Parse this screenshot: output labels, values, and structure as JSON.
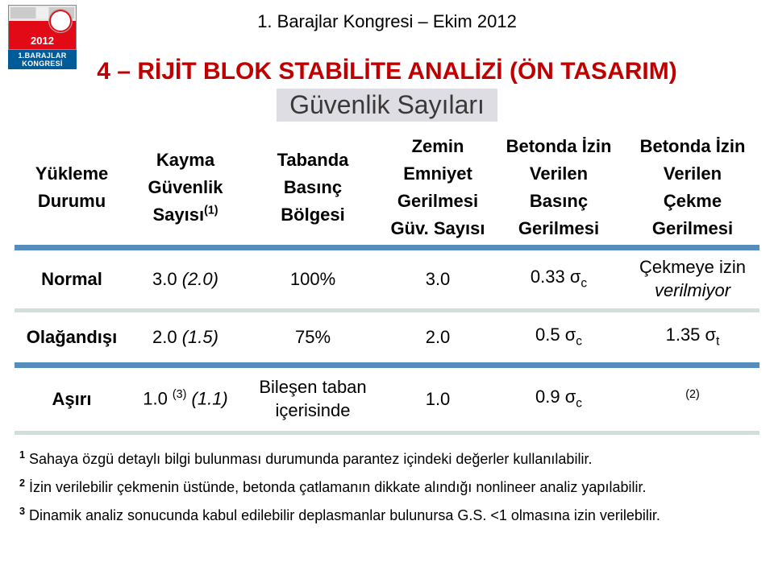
{
  "logo": {
    "year": "2012",
    "band": "1.BARAJLAR KONGRESİ"
  },
  "page_label": "1. Barajlar Kongresi – Ekim 2012",
  "section_title": "4 – RİJİT BLOK STABİLİTE ANALİZİ (ÖN TASARIM)",
  "subtitle": "Güvenlik Sayıları",
  "table": {
    "headers": {
      "c0_l1": "Yükleme",
      "c0_l2": "Durumu",
      "c1_l1": "Kayma",
      "c1_l2": "Güvenlik",
      "c1_l3": "Sayısı",
      "c1_sup": "(1)",
      "c2_l1": "Tabanda",
      "c2_l2": "Basınç",
      "c2_l3": "Bölgesi",
      "c3_l1": "Zemin",
      "c3_l2": "Emniyet",
      "c3_l3": "Gerilmesi",
      "c3_l4": "Güv. Sayısı",
      "c4_l1": "Betonda İzin",
      "c4_l2": "Verilen",
      "c4_l3": "Basınç",
      "c4_l4": "Gerilmesi",
      "c5_l1": "Betonda İzin",
      "c5_l2": "Verilen",
      "c5_l3": "Çekme",
      "c5_l4": "Gerilmesi"
    },
    "rows": [
      {
        "c0": "Normal",
        "c1_a": "3.0 ",
        "c1_b": "(2.0)",
        "c2": "100%",
        "c3": "3.0",
        "c4_num": "0.33 ",
        "c4_sym": "σ",
        "c4_sub": "c",
        "c5_l1": "Çekmeye izin",
        "c5_l2": "verilmiyor"
      },
      {
        "c0": "Olağandışı",
        "c1_a": "2.0 ",
        "c1_b": "(1.5)",
        "c2": "75%",
        "c3": "2.0",
        "c4_num": "0.5 ",
        "c4_sym": "σ",
        "c4_sub": "c",
        "c5_num": "1.35 ",
        "c5_sym": "σ",
        "c5_sub": "t"
      },
      {
        "c0": "Aşırı",
        "c1_a": "1.0 ",
        "c1_sup": "(3)",
        "c1_b": " (1.1)",
        "c2_l1": "Bileşen taban",
        "c2_l2": "içerisinde",
        "c3": "1.0",
        "c4_num": "0.9 ",
        "c4_sym": "σ",
        "c4_sub": "c",
        "c5_sup": "(2)"
      }
    ]
  },
  "footnotes": {
    "f1_sup": "1",
    "f1": " Sahaya özgü detaylı bilgi bulunması durumunda parantez içindeki değerler kullanılabilir.",
    "f2_sup": "2",
    "f2": " İzin verilebilir çekmenin üstünde, betonda çatlamanın dikkate alındığı nonlineer analiz yapılabilir.",
    "f3_sup": "3",
    "f3": " Dinamik analiz sonucunda kabul edilebilir deplasmanlar bulunursa G.S. <1 olmasına izin verilebilir."
  },
  "colors": {
    "title": "#c00000",
    "subtitle_bg": "#dedde4",
    "thick_rule": "#578dbe",
    "thin_rule": "#d1deda"
  }
}
